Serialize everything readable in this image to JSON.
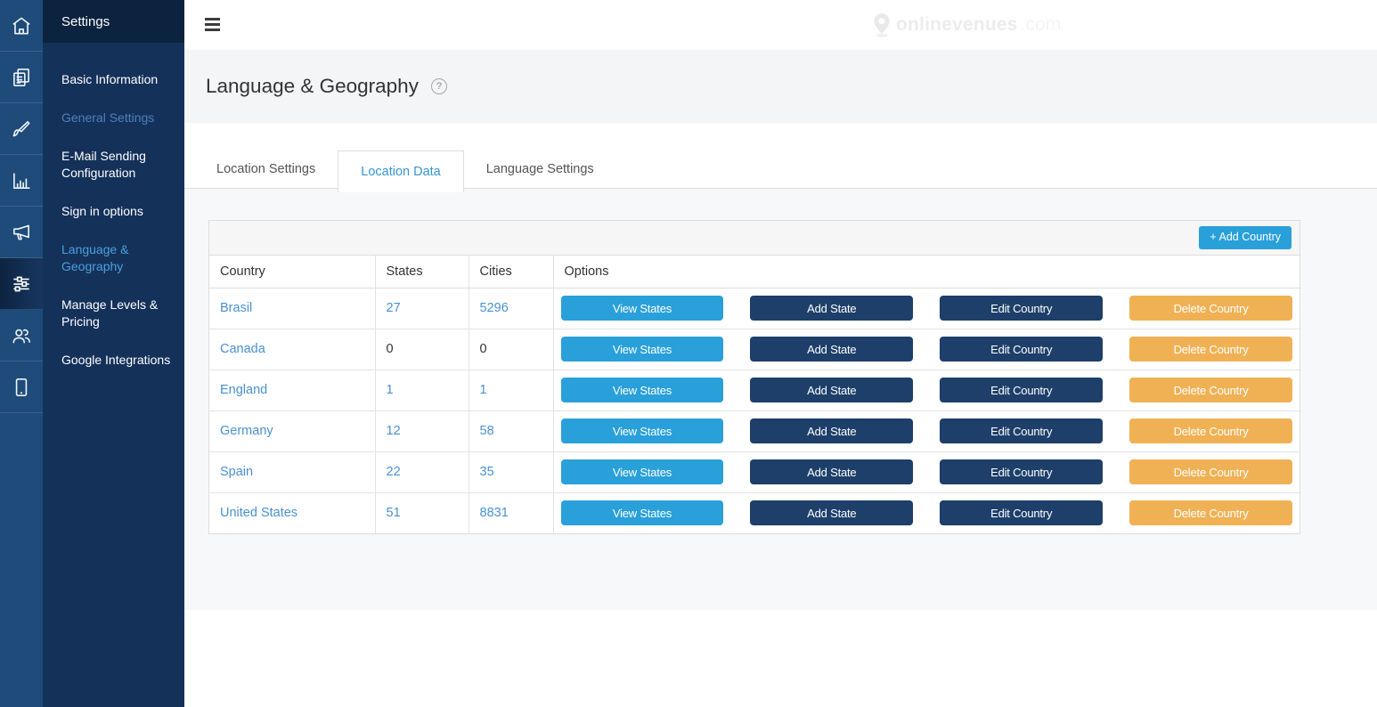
{
  "colors": {
    "rail_bg": "#1e4b79",
    "panel_bg": "#14315a",
    "panel_header_bg": "#0c2340",
    "active_link_blue": "#4aa0de",
    "muted_link_blue": "#4d80ba",
    "tab_active_blue": "#3596d3",
    "table_link_blue": "#4a90d2",
    "button_light_blue": "#29a0da",
    "button_dark_navy": "#1d3f6a",
    "button_orange": "#f0b155",
    "title_band_bg": "#f4f5f7",
    "content_bg": "#f7f8f9"
  },
  "sidebar": {
    "header": "Settings",
    "rail_icons": [
      {
        "name": "home-icon",
        "active": false
      },
      {
        "name": "pages-icon",
        "active": false
      },
      {
        "name": "brush-icon",
        "active": false
      },
      {
        "name": "chart-icon",
        "active": false
      },
      {
        "name": "megaphone-icon",
        "active": false
      },
      {
        "name": "sliders-icon",
        "active": true
      },
      {
        "name": "users-icon",
        "active": false
      },
      {
        "name": "phone-icon",
        "active": false
      }
    ],
    "items": [
      {
        "label": "Basic Information",
        "style": "default"
      },
      {
        "label": "General Settings",
        "style": "muted-blue"
      },
      {
        "label": "E-Mail Sending Configuration",
        "style": "default"
      },
      {
        "label": "Sign in options",
        "style": "default"
      },
      {
        "label": "Language & Geography",
        "style": "active"
      },
      {
        "label": "Manage Levels & Pricing",
        "style": "default"
      },
      {
        "label": "Google Integrations",
        "style": "default"
      }
    ]
  },
  "topbar": {
    "menu_icon": "hamburger-icon",
    "logo_icon": "map-pin-icon",
    "logo_text": "onlinevenues",
    "logo_suffix": ".com"
  },
  "page": {
    "title": "Language & Geography",
    "help_label": "?"
  },
  "tabs": [
    {
      "label": "Location Settings",
      "active": false
    },
    {
      "label": "Location Data",
      "active": true
    },
    {
      "label": "Language Settings",
      "active": false
    }
  ],
  "panel_actions": {
    "add_country_label": "+ Add Country"
  },
  "table": {
    "columns": [
      "Country",
      "States",
      "Cities",
      "Options"
    ],
    "rows": [
      {
        "country": "Brasil",
        "states": "27",
        "cities": "5296",
        "states_linked": true,
        "cities_linked": true
      },
      {
        "country": "Canada",
        "states": "0",
        "cities": "0",
        "states_linked": false,
        "cities_linked": false
      },
      {
        "country": "England",
        "states": "1",
        "cities": "1",
        "states_linked": true,
        "cities_linked": true
      },
      {
        "country": "Germany",
        "states": "12",
        "cities": "58",
        "states_linked": true,
        "cities_linked": true
      },
      {
        "country": "Spain",
        "states": "22",
        "cities": "35",
        "states_linked": true,
        "cities_linked": true
      },
      {
        "country": "United States",
        "states": "51",
        "cities": "8831",
        "states_linked": true,
        "cities_linked": true
      }
    ],
    "row_buttons": [
      {
        "label": "View States",
        "style": "light-blue",
        "name": "view-states-button"
      },
      {
        "label": "Add State",
        "style": "dark",
        "name": "add-state-button"
      },
      {
        "label": "Edit Country",
        "style": "dark",
        "name": "edit-country-button"
      },
      {
        "label": "Delete Country",
        "style": "orange",
        "name": "delete-country-button"
      }
    ]
  }
}
